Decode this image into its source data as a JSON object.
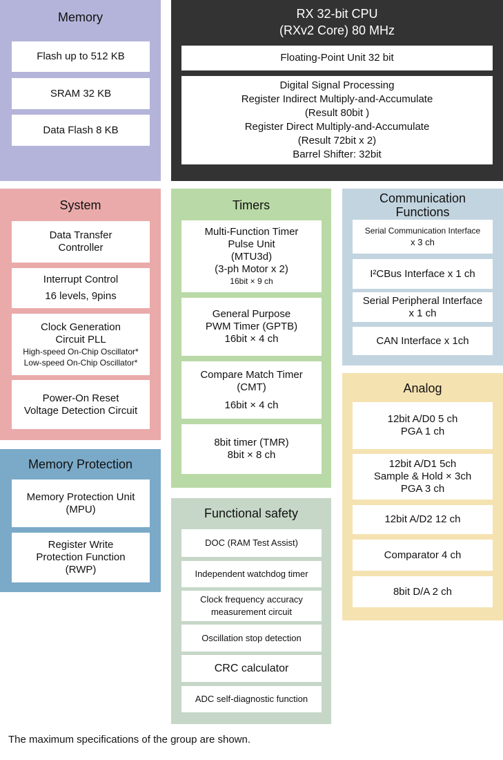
{
  "panels": [
    {
      "id": "p-memory",
      "name": "memory-panel",
      "title": [
        "Memory"
      ],
      "items": [
        {
          "lines": [
            "Flash up to 512 KB"
          ]
        },
        {
          "lines": [
            "SRAM 32 KB"
          ]
        },
        {
          "lines": [
            "Data Flash 8 KB"
          ]
        }
      ]
    },
    {
      "id": "p-cpu",
      "name": "cpu-panel",
      "title": [
        "RX 32-bit CPU",
        "(RXv2 Core) 80 MHz"
      ],
      "items": [
        {
          "lines": [
            "Floating-Point Unit 32 bit"
          ]
        },
        {
          "lines": [
            "Digital Signal Processing",
            "Register Indirect Multiply-and-Accumulate",
            "(Result 80bit )",
            "Register Direct Multiply-and-Accumulate",
            "(Result 72bit x 2)",
            "Barrel Shifter: 32bit"
          ]
        }
      ]
    },
    {
      "id": "p-system",
      "name": "system-panel",
      "title": [
        "System"
      ],
      "items": [
        {
          "lines": [
            "Data Transfer",
            "Controller"
          ]
        },
        {
          "lines": [
            "Interrupt Control",
            "16 levels, 9pins"
          ]
        },
        {
          "lines": [
            "Clock Generation",
            "Circuit PLL",
            "High-speed On-Chip Oscillator*",
            "Low-speed On-Chip Oscillator*"
          ]
        },
        {
          "lines": [
            "Power-On Reset",
            "Voltage Detection Circuit"
          ]
        }
      ]
    },
    {
      "id": "p-mprot",
      "name": "memory-protection-panel",
      "title": [
        "Memory Protection"
      ],
      "items": [
        {
          "lines": [
            "Memory Protection Unit",
            "(MPU)"
          ]
        },
        {
          "lines": [
            "Register Write",
            "Protection Function",
            "(RWP)"
          ]
        }
      ]
    },
    {
      "id": "p-timers",
      "name": "timers-panel",
      "title": [
        "Timers"
      ],
      "items": [
        {
          "lines": [
            "Multi-Function Timer",
            "Pulse Unit",
            "(MTU3d)",
            "(3-ph Motor x 2)",
            "16bit × 9 ch"
          ]
        },
        {
          "lines": [
            "General Purpose",
            "PWM Timer (GPTB)",
            "16bit × 4 ch"
          ]
        },
        {
          "lines": [
            "Compare Match Timer",
            "(CMT)",
            "16bit × 4 ch"
          ]
        },
        {
          "lines": [
            "8bit timer (TMR)",
            "8bit × 8 ch"
          ]
        }
      ]
    },
    {
      "id": "p-fsafe",
      "name": "functional-safety-panel",
      "title": [
        "Functional safety"
      ],
      "items": [
        {
          "lines": [
            "DOC (RAM Test Assist)"
          ]
        },
        {
          "lines": [
            "Independent watchdog timer"
          ]
        },
        {
          "lines": [
            "Clock frequency accuracy",
            "measurement circuit"
          ]
        },
        {
          "lines": [
            "Oscillation stop detection"
          ]
        },
        {
          "lines": [
            "CRC calculator"
          ]
        },
        {
          "lines": [
            "ADC self-diagnostic function"
          ]
        }
      ]
    },
    {
      "id": "p-comm",
      "name": "communication-panel",
      "title": [
        "Communication",
        "Functions"
      ],
      "items": [
        {
          "lines": [
            "Serial Communication Interface",
            "x 3 ch"
          ]
        },
        {
          "lines": [
            "I²CBus Interface x 1 ch"
          ]
        },
        {
          "lines": [
            "Serial Peripheral Interface",
            "x 1 ch"
          ]
        },
        {
          "lines": [
            "CAN Interface x 1ch"
          ]
        }
      ]
    },
    {
      "id": "p-analog",
      "name": "analog-panel",
      "title": [
        "Analog"
      ],
      "items": [
        {
          "lines": [
            "12bit A/D0 5 ch",
            "PGA 1 ch"
          ]
        },
        {
          "lines": [
            "12bit A/D1 5ch",
            "Sample & Hold × 3ch",
            "PGA 3 ch"
          ]
        },
        {
          "lines": [
            "12bit A/D2 12 ch"
          ]
        },
        {
          "lines": [
            "Comparator 4 ch"
          ]
        },
        {
          "lines": [
            "8bit D/A 2 ch"
          ]
        }
      ]
    }
  ],
  "footer": "The maximum specifications of the group are shown."
}
